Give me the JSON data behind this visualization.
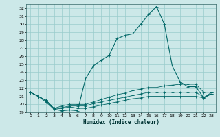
{
  "xlabel": "Humidex (Indice chaleur)",
  "bg_color": "#cce8e8",
  "grid_color": "#99cccc",
  "line_color": "#006666",
  "xlim": [
    -0.5,
    23.5
  ],
  "ylim": [
    19,
    32.5
  ],
  "yticks": [
    19,
    20,
    21,
    22,
    23,
    24,
    25,
    26,
    27,
    28,
    29,
    30,
    31,
    32
  ],
  "xticks": [
    0,
    1,
    2,
    3,
    4,
    5,
    6,
    7,
    8,
    9,
    10,
    11,
    12,
    13,
    14,
    15,
    16,
    17,
    18,
    19,
    20,
    21,
    22,
    23
  ],
  "lines": [
    {
      "x": [
        0,
        1,
        2,
        3,
        4,
        5,
        6,
        7,
        8,
        9,
        10,
        11,
        12,
        13,
        14,
        15,
        16,
        17,
        18,
        19,
        20,
        21,
        22,
        23
      ],
      "y": [
        21.5,
        21.0,
        20.3,
        19.4,
        19.2,
        19.3,
        19.2,
        23.2,
        24.8,
        25.5,
        26.1,
        28.2,
        28.6,
        28.8,
        30.0,
        31.2,
        32.2,
        30.0,
        24.8,
        22.8,
        22.2,
        22.2,
        20.8,
        21.5
      ]
    },
    {
      "x": [
        0,
        1,
        2,
        3,
        4,
        5,
        6,
        7,
        8,
        9,
        10,
        11,
        12,
        13,
        14,
        15,
        16,
        17,
        18,
        19,
        20,
        21,
        22,
        23
      ],
      "y": [
        21.5,
        21.0,
        20.5,
        19.5,
        19.8,
        20.0,
        20.0,
        20.0,
        20.3,
        20.6,
        20.9,
        21.2,
        21.4,
        21.7,
        21.9,
        22.1,
        22.1,
        22.3,
        22.4,
        22.5,
        22.5,
        22.5,
        21.5,
        21.5
      ]
    },
    {
      "x": [
        0,
        1,
        2,
        3,
        4,
        5,
        6,
        7,
        8,
        9,
        10,
        11,
        12,
        13,
        14,
        15,
        16,
        17,
        18,
        19,
        20,
        21,
        22,
        23
      ],
      "y": [
        21.5,
        21.0,
        20.5,
        19.5,
        19.6,
        19.8,
        19.8,
        19.8,
        20.1,
        20.3,
        20.5,
        20.7,
        20.9,
        21.1,
        21.3,
        21.5,
        21.5,
        21.5,
        21.5,
        21.5,
        21.5,
        21.5,
        20.9,
        21.3
      ]
    },
    {
      "x": [
        0,
        1,
        2,
        3,
        4,
        5,
        6,
        7,
        8,
        9,
        10,
        11,
        12,
        13,
        14,
        15,
        16,
        17,
        18,
        19,
        20,
        21,
        22,
        23
      ],
      "y": [
        21.5,
        21.0,
        20.5,
        19.4,
        19.5,
        19.7,
        19.5,
        19.5,
        19.7,
        19.9,
        20.1,
        20.3,
        20.5,
        20.7,
        20.8,
        21.0,
        21.0,
        21.0,
        21.0,
        21.0,
        21.0,
        21.0,
        20.8,
        21.3
      ]
    }
  ]
}
